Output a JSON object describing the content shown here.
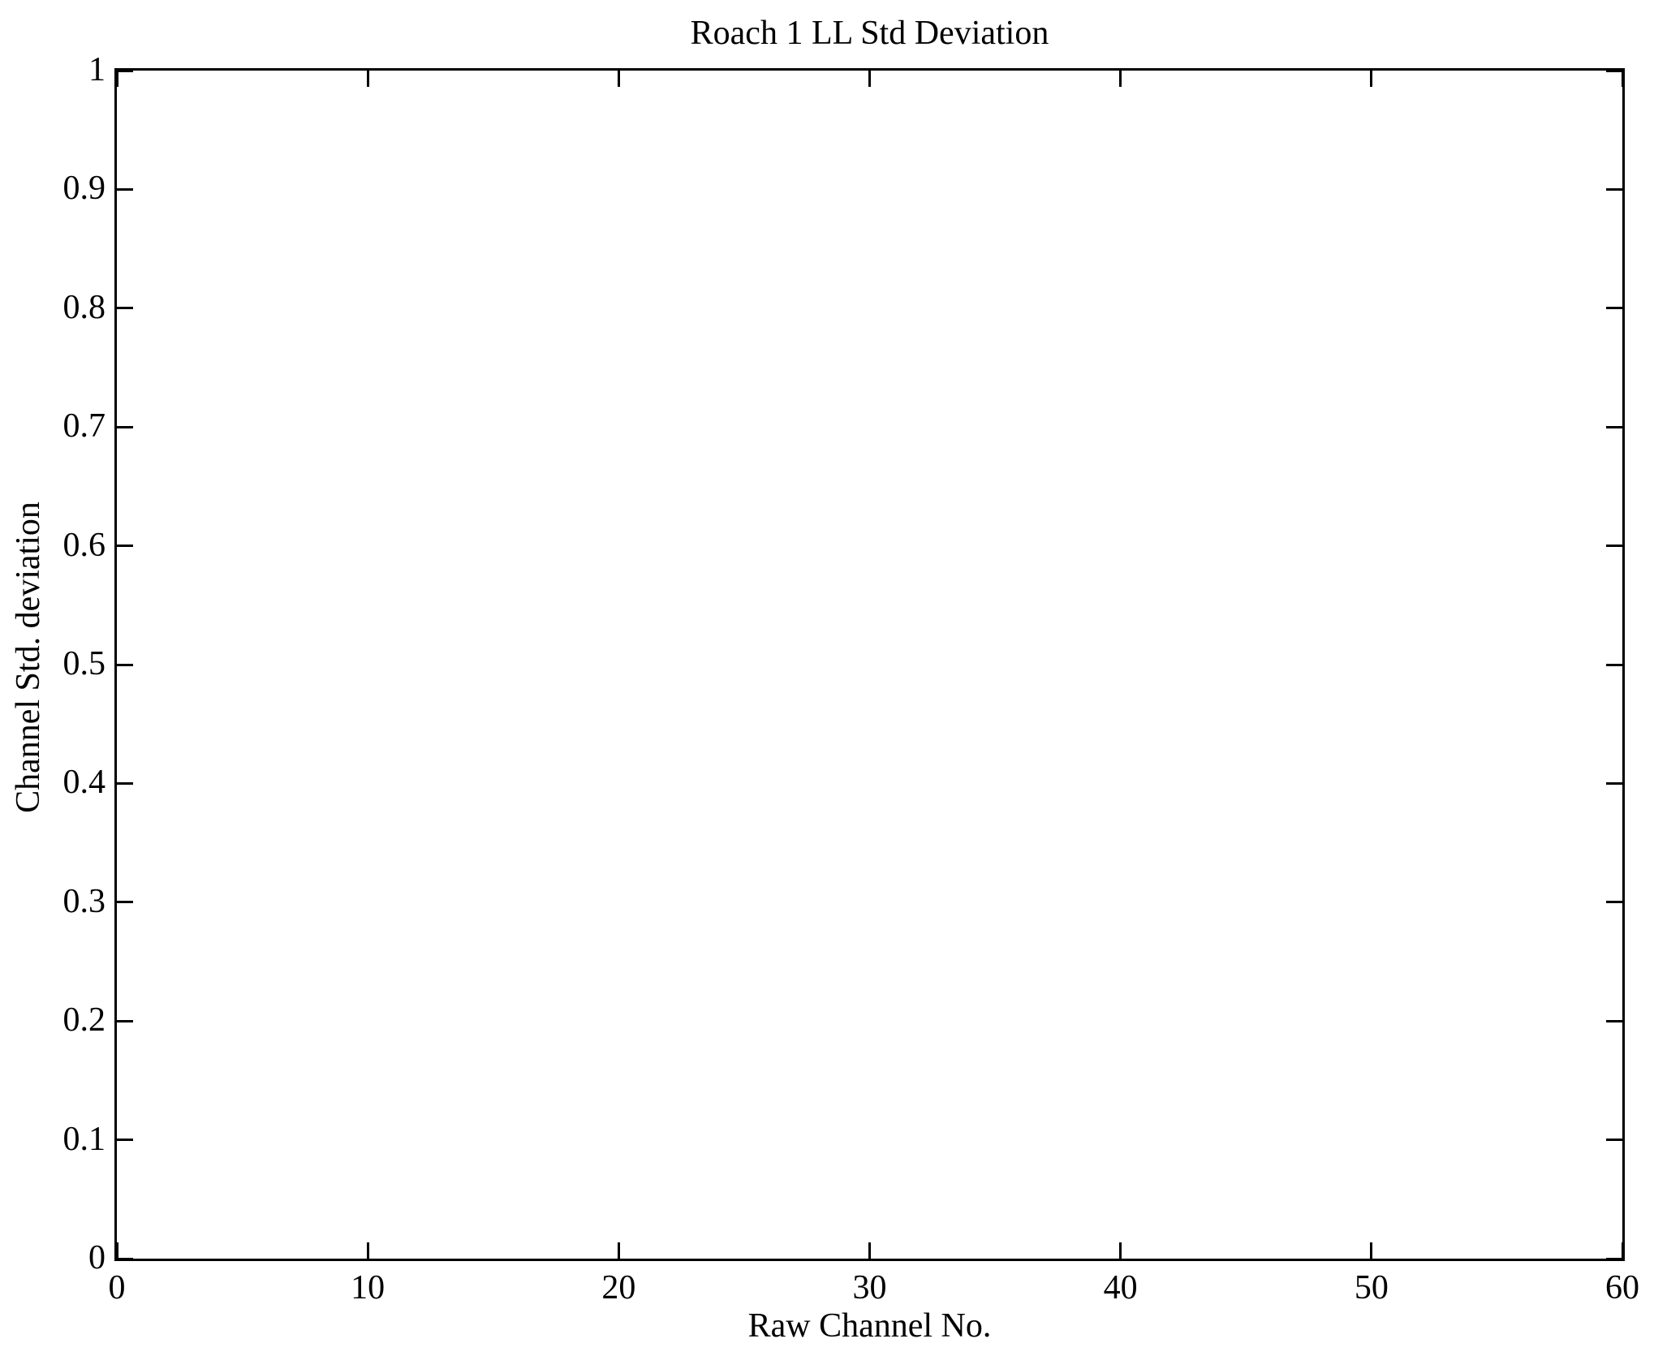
{
  "chart_data": {
    "type": "line",
    "title": "Roach 1 LL Std Deviation",
    "xlabel": "Raw Channel No.",
    "ylabel": "Channel Std. deviation",
    "xlim": [
      0,
      60
    ],
    "ylim": [
      0,
      1
    ],
    "xticks": {
      "values": [
        0,
        10,
        20,
        30,
        40,
        50,
        60
      ],
      "labels": [
        "0",
        "10",
        "20",
        "30",
        "40",
        "50",
        "60"
      ]
    },
    "yticks": {
      "values": [
        0,
        0.1,
        0.2,
        0.3,
        0.4,
        0.5,
        0.6,
        0.7,
        0.8,
        0.9,
        1
      ],
      "labels": [
        "0",
        "0.1",
        "0.2",
        "0.3",
        "0.4",
        "0.5",
        "0.6",
        "0.7",
        "0.8",
        "0.9",
        "1"
      ]
    },
    "grid": false,
    "legend_position": "none",
    "series": []
  },
  "colors": {
    "background": "#ffffff",
    "axis": "#000000",
    "text": "#000000"
  }
}
